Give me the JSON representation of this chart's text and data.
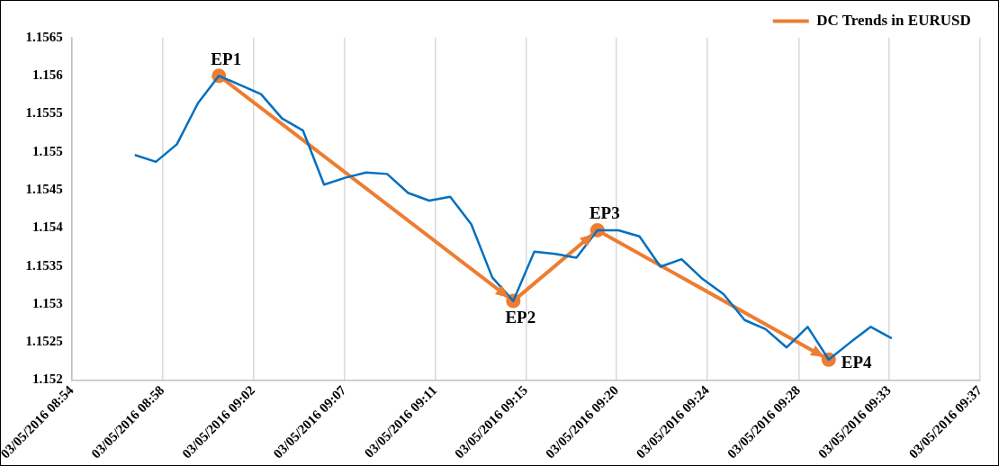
{
  "chart_data": {
    "type": "line",
    "xlim": [
      "2016-05-03T08:54:00",
      "2016-05-03T09:37:12"
    ],
    "xticks": [
      {
        "value": "2016-05-03T08:54:00",
        "label": "03/05/2016 08:54"
      },
      {
        "value": "2016-05-03T08:58:19",
        "label": "03/05/2016 08:58"
      },
      {
        "value": "2016-05-03T09:02:38",
        "label": "03/05/2016 09:02"
      },
      {
        "value": "2016-05-03T09:06:58",
        "label": "03/05/2016 09:07"
      },
      {
        "value": "2016-05-03T09:11:17",
        "label": "03/05/2016 09:11"
      },
      {
        "value": "2016-05-03T09:15:36",
        "label": "03/05/2016 09:15"
      },
      {
        "value": "2016-05-03T09:19:55",
        "label": "03/05/2016 09:20"
      },
      {
        "value": "2016-05-03T09:24:14",
        "label": "03/05/2016 09:24"
      },
      {
        "value": "2016-05-03T09:28:34",
        "label": "03/05/2016 09:28"
      },
      {
        "value": "2016-05-03T09:32:53",
        "label": "03/05/2016 09:33"
      },
      {
        "value": "2016-05-03T09:37:12",
        "label": "03/05/2016 09:37"
      }
    ],
    "ylim": [
      1.152,
      1.1565
    ],
    "yticks": [
      1.152,
      1.1525,
      1.153,
      1.1535,
      1.154,
      1.1545,
      1.155,
      1.1555,
      1.156,
      1.1565
    ],
    "grid": "x",
    "legend": "top right",
    "series": [
      {
        "color": "#0070c0",
        "marker": "none",
        "x": [
          "2016-05-03T08:57",
          "2016-05-03T08:58",
          "2016-05-03T08:59",
          "2016-05-03T09:00",
          "2016-05-03T09:01",
          "2016-05-03T09:02",
          "2016-05-03T09:03",
          "2016-05-03T09:04",
          "2016-05-03T09:05",
          "2016-05-03T09:06",
          "2016-05-03T09:07",
          "2016-05-03T09:08",
          "2016-05-03T09:09",
          "2016-05-03T09:10",
          "2016-05-03T09:11",
          "2016-05-03T09:12",
          "2016-05-03T09:13",
          "2016-05-03T09:14",
          "2016-05-03T09:15",
          "2016-05-03T09:16",
          "2016-05-03T09:17",
          "2016-05-03T09:18",
          "2016-05-03T09:19",
          "2016-05-03T09:20",
          "2016-05-03T09:21",
          "2016-05-03T09:22",
          "2016-05-03T09:23",
          "2016-05-03T09:24",
          "2016-05-03T09:25",
          "2016-05-03T09:26",
          "2016-05-03T09:27",
          "2016-05-03T09:28",
          "2016-05-03T09:29",
          "2016-05-03T09:30",
          "2016-05-03T09:31",
          "2016-05-03T09:32",
          "2016-05-03T09:33"
        ],
        "values": [
          1.15496,
          1.15487,
          1.1551,
          1.15564,
          1.156,
          1.15588,
          1.15576,
          1.15544,
          1.15528,
          1.15457,
          1.15466,
          1.15473,
          1.15471,
          1.15446,
          1.15436,
          1.15441,
          1.15405,
          1.15335,
          1.15304,
          1.15369,
          1.15366,
          1.15361,
          1.15397,
          1.15397,
          1.15389,
          1.15349,
          1.15359,
          1.15333,
          1.15313,
          1.15279,
          1.15267,
          1.15243,
          1.1527,
          1.15227,
          1.15249,
          1.1527,
          1.15255
        ]
      },
      {
        "name": "DC Trends in EURUSD",
        "color": "#ed7d31",
        "marker": "circle",
        "x": [
          "2016-05-03T09:01",
          "2016-05-03T09:15",
          "2016-05-03T09:19",
          "2016-05-03T09:30"
        ],
        "values": [
          1.156,
          1.15304,
          1.15397,
          1.15227
        ]
      }
    ],
    "annotations": [
      {
        "text": "EP1",
        "x": "2016-05-03T09:01",
        "y": 1.156
      },
      {
        "text": "EP2",
        "x": "2016-05-03T09:15",
        "y": 1.15304
      },
      {
        "text": "EP3",
        "x": "2016-05-03T09:19",
        "y": 1.15397
      },
      {
        "text": "EP4",
        "x": "2016-05-03T09:30",
        "y": 1.15227
      }
    ]
  }
}
